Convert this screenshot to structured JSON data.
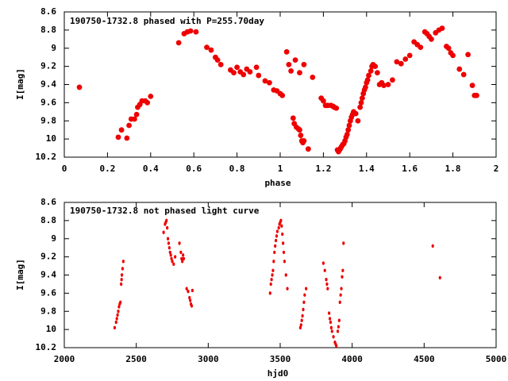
{
  "colors": {
    "marker": "#ee0000",
    "axis": "#000000",
    "background": "#ffffff"
  },
  "chart_data": [
    {
      "type": "scatter",
      "title": "190750-1732.8 phased with P=255.70day",
      "xlabel": "phase",
      "ylabel": "I[mag]",
      "xlim": [
        0,
        2
      ],
      "ylim": [
        8.6,
        10.2
      ],
      "y_inverted": true,
      "grid": false,
      "marker": "large",
      "x_ticks": [
        "0",
        "0.2",
        "0.4",
        "0.6",
        "0.8",
        "1",
        "1.2",
        "1.4",
        "1.6",
        "1.8",
        "2"
      ],
      "y_ticks": [
        "8.6",
        "8.8",
        "9",
        "9.2",
        "9.4",
        "9.6",
        "9.8",
        "10",
        "10.2"
      ],
      "series": [
        {
          "points": [
            [
              0.07,
              9.43
            ],
            [
              0.25,
              9.98
            ],
            [
              0.265,
              9.9
            ],
            [
              0.29,
              9.99
            ],
            [
              0.3,
              9.85
            ],
            [
              0.31,
              9.78
            ],
            [
              0.325,
              9.78
            ],
            [
              0.335,
              9.73
            ],
            [
              0.34,
              9.65
            ],
            [
              0.35,
              9.62
            ],
            [
              0.36,
              9.58
            ],
            [
              0.375,
              9.58
            ],
            [
              0.385,
              9.6
            ],
            [
              0.4,
              9.53
            ],
            [
              0.53,
              8.94
            ],
            [
              0.555,
              8.84
            ],
            [
              0.57,
              8.82
            ],
            [
              0.585,
              8.81
            ],
            [
              0.61,
              8.82
            ],
            [
              0.66,
              8.99
            ],
            [
              0.68,
              9.02
            ],
            [
              0.7,
              9.1
            ],
            [
              0.71,
              9.13
            ],
            [
              0.725,
              9.18
            ],
            [
              0.77,
              9.24
            ],
            [
              0.785,
              9.27
            ],
            [
              0.8,
              9.21
            ],
            [
              0.815,
              9.26
            ],
            [
              0.83,
              9.29
            ],
            [
              0.845,
              9.23
            ],
            [
              0.86,
              9.26
            ],
            [
              0.89,
              9.21
            ],
            [
              0.9,
              9.3
            ],
            [
              0.93,
              9.36
            ],
            [
              0.95,
              9.38
            ],
            [
              0.97,
              9.46
            ],
            [
              0.985,
              9.47
            ],
            [
              1.0,
              9.5
            ],
            [
              1.01,
              9.52
            ],
            [
              1.03,
              9.04
            ],
            [
              1.04,
              9.18
            ],
            [
              1.05,
              9.25
            ],
            [
              1.07,
              9.13
            ],
            [
              1.09,
              9.27
            ],
            [
              1.11,
              9.18
            ],
            [
              1.15,
              9.32
            ],
            [
              1.06,
              9.77
            ],
            [
              1.065,
              9.83
            ],
            [
              1.075,
              9.87
            ],
            [
              1.085,
              9.89
            ],
            [
              1.09,
              9.9
            ],
            [
              1.095,
              9.96
            ],
            [
              1.1,
              10.02
            ],
            [
              1.105,
              10.04
            ],
            [
              1.11,
              10.02
            ],
            [
              1.13,
              10.11
            ],
            [
              1.19,
              9.55
            ],
            [
              1.2,
              9.58
            ],
            [
              1.21,
              9.63
            ],
            [
              1.22,
              9.63
            ],
            [
              1.235,
              9.63
            ],
            [
              1.245,
              9.64
            ],
            [
              1.25,
              9.65
            ],
            [
              1.26,
              9.66
            ],
            [
              1.265,
              10.12
            ],
            [
              1.27,
              10.14
            ],
            [
              1.275,
              10.12
            ],
            [
              1.28,
              10.1
            ],
            [
              1.285,
              10.08
            ],
            [
              1.29,
              10.06
            ],
            [
              1.295,
              10.05
            ],
            [
              1.3,
              10.02
            ],
            [
              1.305,
              9.98
            ],
            [
              1.31,
              9.95
            ],
            [
              1.315,
              9.9
            ],
            [
              1.32,
              9.85
            ],
            [
              1.325,
              9.8
            ],
            [
              1.33,
              9.76
            ],
            [
              1.335,
              9.73
            ],
            [
              1.34,
              9.7
            ],
            [
              1.35,
              9.72
            ],
            [
              1.36,
              9.8
            ],
            [
              1.37,
              9.65
            ],
            [
              1.375,
              9.6
            ],
            [
              1.38,
              9.55
            ],
            [
              1.385,
              9.5
            ],
            [
              1.39,
              9.46
            ],
            [
              1.395,
              9.43
            ],
            [
              1.4,
              9.38
            ],
            [
              1.405,
              9.35
            ],
            [
              1.41,
              9.3
            ],
            [
              1.42,
              9.25
            ],
            [
              1.425,
              9.2
            ],
            [
              1.43,
              9.18
            ],
            [
              1.44,
              9.2
            ],
            [
              1.45,
              9.27
            ],
            [
              1.46,
              9.4
            ],
            [
              1.47,
              9.38
            ],
            [
              1.48,
              9.41
            ],
            [
              1.5,
              9.4
            ],
            [
              1.52,
              9.35
            ],
            [
              1.54,
              9.15
            ],
            [
              1.56,
              9.17
            ],
            [
              1.58,
              9.12
            ],
            [
              1.6,
              9.08
            ],
            [
              1.62,
              8.93
            ],
            [
              1.635,
              8.96
            ],
            [
              1.65,
              8.99
            ],
            [
              1.67,
              8.82
            ],
            [
              1.68,
              8.84
            ],
            [
              1.69,
              8.87
            ],
            [
              1.7,
              8.9
            ],
            [
              1.72,
              8.83
            ],
            [
              1.735,
              8.8
            ],
            [
              1.75,
              8.78
            ],
            [
              1.77,
              8.98
            ],
            [
              1.78,
              9.0
            ],
            [
              1.79,
              9.05
            ],
            [
              1.8,
              9.08
            ],
            [
              1.83,
              9.23
            ],
            [
              1.85,
              9.29
            ],
            [
              1.87,
              9.07
            ],
            [
              1.89,
              9.41
            ],
            [
              1.9,
              9.52
            ],
            [
              1.91,
              9.52
            ]
          ]
        }
      ]
    },
    {
      "type": "scatter",
      "title": "190750-1732.8 not phased light curve",
      "xlabel": "hjd0",
      "ylabel": "I[mag]",
      "xlim": [
        2000,
        5000
      ],
      "ylim": [
        8.6,
        10.2
      ],
      "y_inverted": true,
      "grid": false,
      "marker": "small",
      "x_ticks": [
        "2000",
        "2500",
        "3000",
        "3500",
        "4000",
        "4500",
        "5000"
      ],
      "y_ticks": [
        "8.6",
        "8.8",
        "9",
        "9.2",
        "9.4",
        "9.6",
        "9.8",
        "10",
        "10.2"
      ],
      "series": [
        {
          "points": [
            [
              2350,
              9.98
            ],
            [
              2360,
              9.92
            ],
            [
              2365,
              9.88
            ],
            [
              2370,
              9.84
            ],
            [
              2375,
              9.8
            ],
            [
              2380,
              9.75
            ],
            [
              2385,
              9.72
            ],
            [
              2390,
              9.7
            ],
            [
              2395,
              9.5
            ],
            [
              2398,
              9.45
            ],
            [
              2400,
              9.4
            ],
            [
              2405,
              9.33
            ],
            [
              2410,
              9.25
            ],
            [
              2690,
              8.93
            ],
            [
              2700,
              8.84
            ],
            [
              2705,
              8.82
            ],
            [
              2710,
              8.8
            ],
            [
              2715,
              8.88
            ],
            [
              2720,
              9.0
            ],
            [
              2725,
              9.05
            ],
            [
              2730,
              9.1
            ],
            [
              2735,
              9.15
            ],
            [
              2740,
              9.18
            ],
            [
              2745,
              9.22
            ],
            [
              2750,
              9.25
            ],
            [
              2760,
              9.28
            ],
            [
              2770,
              9.2
            ],
            [
              2800,
              9.05
            ],
            [
              2810,
              9.15
            ],
            [
              2815,
              9.22
            ],
            [
              2820,
              9.25
            ],
            [
              2825,
              9.18
            ],
            [
              2830,
              9.22
            ],
            [
              2850,
              9.55
            ],
            [
              2860,
              9.58
            ],
            [
              2870,
              9.65
            ],
            [
              2875,
              9.68
            ],
            [
              2880,
              9.72
            ],
            [
              2885,
              9.74
            ],
            [
              2890,
              9.57
            ],
            [
              3430,
              9.6
            ],
            [
              3435,
              9.5
            ],
            [
              3440,
              9.45
            ],
            [
              3445,
              9.4
            ],
            [
              3450,
              9.35
            ],
            [
              3455,
              9.25
            ],
            [
              3460,
              9.15
            ],
            [
              3465,
              9.08
            ],
            [
              3470,
              9.02
            ],
            [
              3475,
              8.97
            ],
            [
              3480,
              8.92
            ],
            [
              3490,
              8.88
            ],
            [
              3495,
              8.84
            ],
            [
              3500,
              8.82
            ],
            [
              3505,
              8.8
            ],
            [
              3510,
              8.86
            ],
            [
              3515,
              8.95
            ],
            [
              3520,
              9.05
            ],
            [
              3525,
              9.15
            ],
            [
              3530,
              9.25
            ],
            [
              3540,
              9.4
            ],
            [
              3550,
              9.55
            ],
            [
              3640,
              9.98
            ],
            [
              3645,
              9.95
            ],
            [
              3650,
              9.9
            ],
            [
              3655,
              9.85
            ],
            [
              3660,
              9.78
            ],
            [
              3665,
              9.7
            ],
            [
              3670,
              9.62
            ],
            [
              3680,
              9.55
            ],
            [
              3800,
              9.27
            ],
            [
              3810,
              9.35
            ],
            [
              3820,
              9.45
            ],
            [
              3825,
              9.5
            ],
            [
              3830,
              9.55
            ],
            [
              3840,
              9.82
            ],
            [
              3845,
              9.88
            ],
            [
              3850,
              9.92
            ],
            [
              3855,
              9.98
            ],
            [
              3860,
              10.02
            ],
            [
              3870,
              10.08
            ],
            [
              3880,
              10.14
            ],
            [
              3885,
              10.16
            ],
            [
              3890,
              10.18
            ],
            [
              3900,
              10.02
            ],
            [
              3905,
              9.97
            ],
            [
              3910,
              9.9
            ],
            [
              3915,
              9.7
            ],
            [
              3920,
              9.62
            ],
            [
              3925,
              9.55
            ],
            [
              3930,
              9.42
            ],
            [
              3935,
              9.35
            ],
            [
              3940,
              9.05
            ],
            [
              4560,
              9.08
            ],
            [
              4610,
              9.43
            ]
          ]
        }
      ]
    }
  ]
}
